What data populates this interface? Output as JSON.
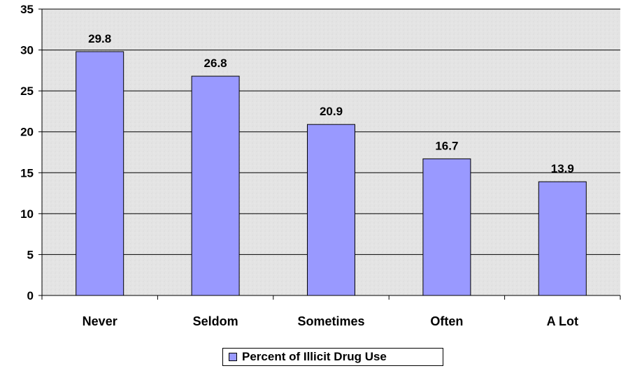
{
  "chart_data": {
    "type": "bar",
    "title": "",
    "xlabel": "",
    "ylabel": "",
    "categories": [
      "Never",
      "Seldom",
      "Sometimes",
      "Often",
      "A Lot"
    ],
    "series": [
      {
        "name": "Percent of Illicit Drug Use",
        "values": [
          29.8,
          26.8,
          20.9,
          16.7,
          13.9
        ]
      }
    ],
    "data_labels": [
      "29.8",
      "26.8",
      "20.9",
      "16.7",
      "13.9"
    ],
    "ylim": [
      0,
      35
    ],
    "y_ticks": [
      "0",
      "5",
      "10",
      "15",
      "20",
      "25",
      "30",
      "35"
    ],
    "grid": true,
    "legend_position": "bottom",
    "colors": {
      "bar": "#9999ff",
      "bar_stroke": "#000000",
      "plot_background": "#e6e6e6"
    }
  }
}
